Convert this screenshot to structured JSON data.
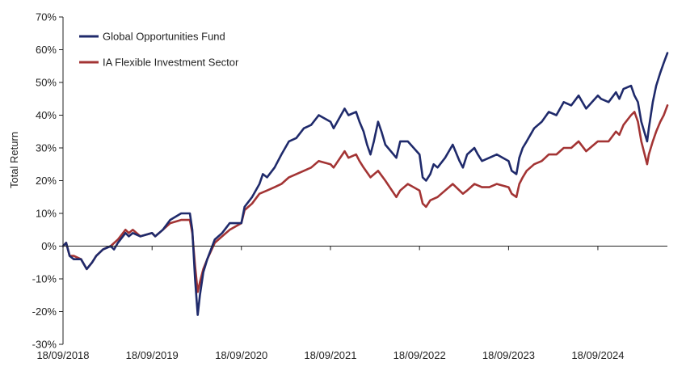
{
  "chart_data": {
    "type": "line",
    "ylabel": "Total Return",
    "ylim": [
      -30,
      70
    ],
    "y_ticks": [
      -30,
      -20,
      -10,
      0,
      10,
      20,
      30,
      40,
      50,
      60,
      70
    ],
    "y_tick_labels": [
      "-30%",
      "-20%",
      "-10%",
      "0%",
      "10%",
      "20%",
      "30%",
      "40%",
      "50%",
      "60%",
      "70%"
    ],
    "x_tick_labels": [
      "18/09/2018",
      "18/09/2019",
      "18/09/2020",
      "18/09/2021",
      "18/09/2022",
      "18/09/2023",
      "18/09/2024"
    ],
    "x_range": [
      "18/09/2018",
      "30/06/2025"
    ],
    "grid": false,
    "legend_position": "top-left",
    "series": [
      {
        "name": "Global Opportunities Fund",
        "color": "#1f2a6b",
        "points": [
          [
            "18/09/2018",
            0
          ],
          [
            "01/10/2018",
            1
          ],
          [
            "15/10/2018",
            -3
          ],
          [
            "01/11/2018",
            -4
          ],
          [
            "01/12/2018",
            -4
          ],
          [
            "24/12/2018",
            -7
          ],
          [
            "15/01/2019",
            -5
          ],
          [
            "01/02/2019",
            -3
          ],
          [
            "01/03/2019",
            -1
          ],
          [
            "01/04/2019",
            0
          ],
          [
            "15/04/2019",
            -1
          ],
          [
            "01/05/2019",
            1
          ],
          [
            "01/06/2019",
            4
          ],
          [
            "15/06/2019",
            3
          ],
          [
            "01/07/2019",
            4
          ],
          [
            "01/08/2019",
            3
          ],
          [
            "18/09/2019",
            4
          ],
          [
            "01/10/2019",
            3
          ],
          [
            "01/11/2019",
            5
          ],
          [
            "01/12/2019",
            8
          ],
          [
            "15/01/2020",
            10
          ],
          [
            "20/02/2020",
            10
          ],
          [
            "01/03/2020",
            5
          ],
          [
            "12/03/2020",
            -10
          ],
          [
            "23/03/2020",
            -21
          ],
          [
            "01/04/2020",
            -15
          ],
          [
            "15/04/2020",
            -8
          ],
          [
            "01/05/2020",
            -4
          ],
          [
            "01/06/2020",
            2
          ],
          [
            "01/07/2020",
            4
          ],
          [
            "01/08/2020",
            7
          ],
          [
            "18/09/2020",
            7
          ],
          [
            "01/10/2020",
            12
          ],
          [
            "01/11/2020",
            15
          ],
          [
            "01/12/2020",
            19
          ],
          [
            "15/12/2020",
            22
          ],
          [
            "01/01/2021",
            21
          ],
          [
            "01/02/2021",
            24
          ],
          [
            "01/03/2021",
            28
          ],
          [
            "01/04/2021",
            32
          ],
          [
            "01/05/2021",
            33
          ],
          [
            "01/06/2021",
            36
          ],
          [
            "01/07/2021",
            37
          ],
          [
            "01/08/2021",
            40
          ],
          [
            "18/09/2021",
            38
          ],
          [
            "01/10/2021",
            36
          ],
          [
            "15/11/2021",
            42
          ],
          [
            "01/12/2021",
            40
          ],
          [
            "01/01/2022",
            41
          ],
          [
            "15/01/2022",
            38
          ],
          [
            "01/02/2022",
            35
          ],
          [
            "15/02/2022",
            31
          ],
          [
            "01/03/2022",
            28
          ],
          [
            "15/03/2022",
            32
          ],
          [
            "01/04/2022",
            38
          ],
          [
            "15/04/2022",
            35
          ],
          [
            "01/05/2022",
            31
          ],
          [
            "15/06/2022",
            27
          ],
          [
            "01/07/2022",
            32
          ],
          [
            "01/08/2022",
            32
          ],
          [
            "18/09/2022",
            28
          ],
          [
            "01/10/2022",
            21
          ],
          [
            "15/10/2022",
            20
          ],
          [
            "01/11/2022",
            22
          ],
          [
            "15/11/2022",
            25
          ],
          [
            "01/12/2022",
            24
          ],
          [
            "01/01/2023",
            27
          ],
          [
            "01/02/2023",
            31
          ],
          [
            "01/03/2023",
            26
          ],
          [
            "15/03/2023",
            24
          ],
          [
            "01/04/2023",
            28
          ],
          [
            "01/05/2023",
            30
          ],
          [
            "15/05/2023",
            28
          ],
          [
            "01/06/2023",
            26
          ],
          [
            "01/07/2023",
            27
          ],
          [
            "01/08/2023",
            28
          ],
          [
            "18/09/2023",
            26
          ],
          [
            "01/10/2023",
            23
          ],
          [
            "20/10/2023",
            22
          ],
          [
            "01/11/2023",
            27
          ],
          [
            "15/11/2023",
            30
          ],
          [
            "01/12/2023",
            32
          ],
          [
            "01/01/2024",
            36
          ],
          [
            "01/02/2024",
            38
          ],
          [
            "01/03/2024",
            41
          ],
          [
            "01/04/2024",
            40
          ],
          [
            "01/05/2024",
            44
          ],
          [
            "01/06/2024",
            43
          ],
          [
            "01/07/2024",
            46
          ],
          [
            "01/08/2024",
            42
          ],
          [
            "18/09/2024",
            46
          ],
          [
            "01/10/2024",
            45
          ],
          [
            "01/11/2024",
            44
          ],
          [
            "01/12/2024",
            47
          ],
          [
            "15/12/2024",
            45
          ],
          [
            "01/01/2025",
            48
          ],
          [
            "01/02/2025",
            49
          ],
          [
            "15/02/2025",
            46
          ],
          [
            "01/03/2025",
            44
          ],
          [
            "15/03/2025",
            38
          ],
          [
            "08/04/2025",
            32
          ],
          [
            "15/04/2025",
            36
          ],
          [
            "01/05/2025",
            44
          ],
          [
            "15/05/2025",
            49
          ],
          [
            "01/06/2025",
            53
          ],
          [
            "15/06/2025",
            56
          ],
          [
            "30/06/2025",
            59
          ]
        ]
      },
      {
        "name": "IA Flexible Investment Sector",
        "color": "#a33434",
        "points": [
          [
            "18/09/2018",
            0
          ],
          [
            "01/10/2018",
            1
          ],
          [
            "15/10/2018",
            -3
          ],
          [
            "01/11/2018",
            -3
          ],
          [
            "01/12/2018",
            -4
          ],
          [
            "24/12/2018",
            -7
          ],
          [
            "15/01/2019",
            -5
          ],
          [
            "01/02/2019",
            -3
          ],
          [
            "01/03/2019",
            -1
          ],
          [
            "01/04/2019",
            0
          ],
          [
            "01/05/2019",
            2
          ],
          [
            "01/06/2019",
            5
          ],
          [
            "15/06/2019",
            4
          ],
          [
            "01/07/2019",
            5
          ],
          [
            "01/08/2019",
            3
          ],
          [
            "18/09/2019",
            4
          ],
          [
            "01/10/2019",
            3
          ],
          [
            "01/11/2019",
            5
          ],
          [
            "01/12/2019",
            7
          ],
          [
            "15/01/2020",
            8
          ],
          [
            "20/02/2020",
            8
          ],
          [
            "01/03/2020",
            4
          ],
          [
            "12/03/2020",
            -6
          ],
          [
            "23/03/2020",
            -14
          ],
          [
            "01/04/2020",
            -11
          ],
          [
            "15/04/2020",
            -7
          ],
          [
            "01/05/2020",
            -4
          ],
          [
            "01/06/2020",
            1
          ],
          [
            "01/07/2020",
            3
          ],
          [
            "01/08/2020",
            5
          ],
          [
            "18/09/2020",
            7
          ],
          [
            "01/10/2020",
            11
          ],
          [
            "01/11/2020",
            13
          ],
          [
            "01/12/2020",
            16
          ],
          [
            "01/01/2021",
            17
          ],
          [
            "01/02/2021",
            18
          ],
          [
            "01/03/2021",
            19
          ],
          [
            "01/04/2021",
            21
          ],
          [
            "01/05/2021",
            22
          ],
          [
            "01/06/2021",
            23
          ],
          [
            "01/07/2021",
            24
          ],
          [
            "01/08/2021",
            26
          ],
          [
            "18/09/2021",
            25
          ],
          [
            "01/10/2021",
            24
          ],
          [
            "15/11/2021",
            29
          ],
          [
            "01/12/2021",
            27
          ],
          [
            "01/01/2022",
            28
          ],
          [
            "15/01/2022",
            26
          ],
          [
            "01/02/2022",
            24
          ],
          [
            "01/03/2022",
            21
          ],
          [
            "01/04/2022",
            23
          ],
          [
            "01/05/2022",
            20
          ],
          [
            "15/06/2022",
            15
          ],
          [
            "01/07/2022",
            17
          ],
          [
            "01/08/2022",
            19
          ],
          [
            "18/09/2022",
            17
          ],
          [
            "01/10/2022",
            13
          ],
          [
            "15/10/2022",
            12
          ],
          [
            "01/11/2022",
            14
          ],
          [
            "01/12/2022",
            15
          ],
          [
            "01/01/2023",
            17
          ],
          [
            "01/02/2023",
            19
          ],
          [
            "15/03/2023",
            16
          ],
          [
            "01/04/2023",
            17
          ],
          [
            "01/05/2023",
            19
          ],
          [
            "01/06/2023",
            18
          ],
          [
            "01/07/2023",
            18
          ],
          [
            "01/08/2023",
            19
          ],
          [
            "18/09/2023",
            18
          ],
          [
            "01/10/2023",
            16
          ],
          [
            "20/10/2023",
            15
          ],
          [
            "01/11/2023",
            19
          ],
          [
            "15/11/2023",
            21
          ],
          [
            "01/12/2023",
            23
          ],
          [
            "01/01/2024",
            25
          ],
          [
            "01/02/2024",
            26
          ],
          [
            "01/03/2024",
            28
          ],
          [
            "01/04/2024",
            28
          ],
          [
            "01/05/2024",
            30
          ],
          [
            "01/06/2024",
            30
          ],
          [
            "01/07/2024",
            32
          ],
          [
            "01/08/2024",
            29
          ],
          [
            "18/09/2024",
            32
          ],
          [
            "01/10/2024",
            32
          ],
          [
            "01/11/2024",
            32
          ],
          [
            "01/12/2024",
            35
          ],
          [
            "15/12/2024",
            34
          ],
          [
            "01/01/2025",
            37
          ],
          [
            "01/02/2025",
            40
          ],
          [
            "15/02/2025",
            41
          ],
          [
            "01/03/2025",
            38
          ],
          [
            "15/03/2025",
            32
          ],
          [
            "08/04/2025",
            25
          ],
          [
            "15/04/2025",
            28
          ],
          [
            "01/05/2025",
            32
          ],
          [
            "15/05/2025",
            35
          ],
          [
            "01/06/2025",
            38
          ],
          [
            "15/06/2025",
            40
          ],
          [
            "30/06/2025",
            43
          ]
        ]
      }
    ]
  }
}
